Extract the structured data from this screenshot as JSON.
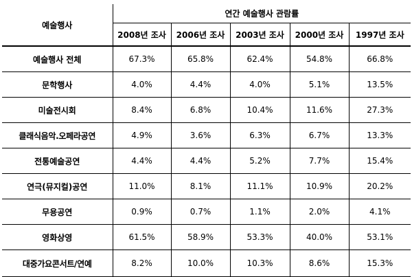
{
  "table": {
    "corner_header": "예술행사",
    "group_header": "연간 예술행사 관람률",
    "columns": [
      "2008년 조사",
      "2006년 조사",
      "2003년 조사",
      "2000년 조사",
      "1997년 조사"
    ],
    "rows": [
      {
        "label": "예술행사 전체",
        "values": [
          "67.3%",
          "65.8%",
          "62.4%",
          "54.8%",
          "66.8%"
        ]
      },
      {
        "label": "문학행사",
        "values": [
          "4.0%",
          "4.4%",
          "4.0%",
          "5.1%",
          "13.5%"
        ]
      },
      {
        "label": "미술전시회",
        "values": [
          "8.4%",
          "6.8%",
          "10.4%",
          "11.6%",
          "27.3%"
        ]
      },
      {
        "label": "클래식음악.오페라공연",
        "values": [
          "4.9%",
          "3.6%",
          "6.3%",
          "6.7%",
          "13.3%"
        ]
      },
      {
        "label": "전통예술공연",
        "values": [
          "4.4%",
          "4.4%",
          "5.2%",
          "7.7%",
          "15.4%"
        ]
      },
      {
        "label": "연극(뮤지컬)공연",
        "values": [
          "11.0%",
          "8.1%",
          "11.1%",
          "10.9%",
          "20.2%"
        ]
      },
      {
        "label": "무용공연",
        "values": [
          "0.9%",
          "0.7%",
          "1.1%",
          "2.0%",
          "4.1%"
        ]
      },
      {
        "label": "영화상영",
        "values": [
          "61.5%",
          "58.9%",
          "53.3%",
          "40.0%",
          "53.1%"
        ]
      },
      {
        "label": "대중가요콘서트/연예",
        "values": [
          "8.2%",
          "10.0%",
          "10.3%",
          "8.6%",
          "15.3%"
        ]
      }
    ]
  }
}
